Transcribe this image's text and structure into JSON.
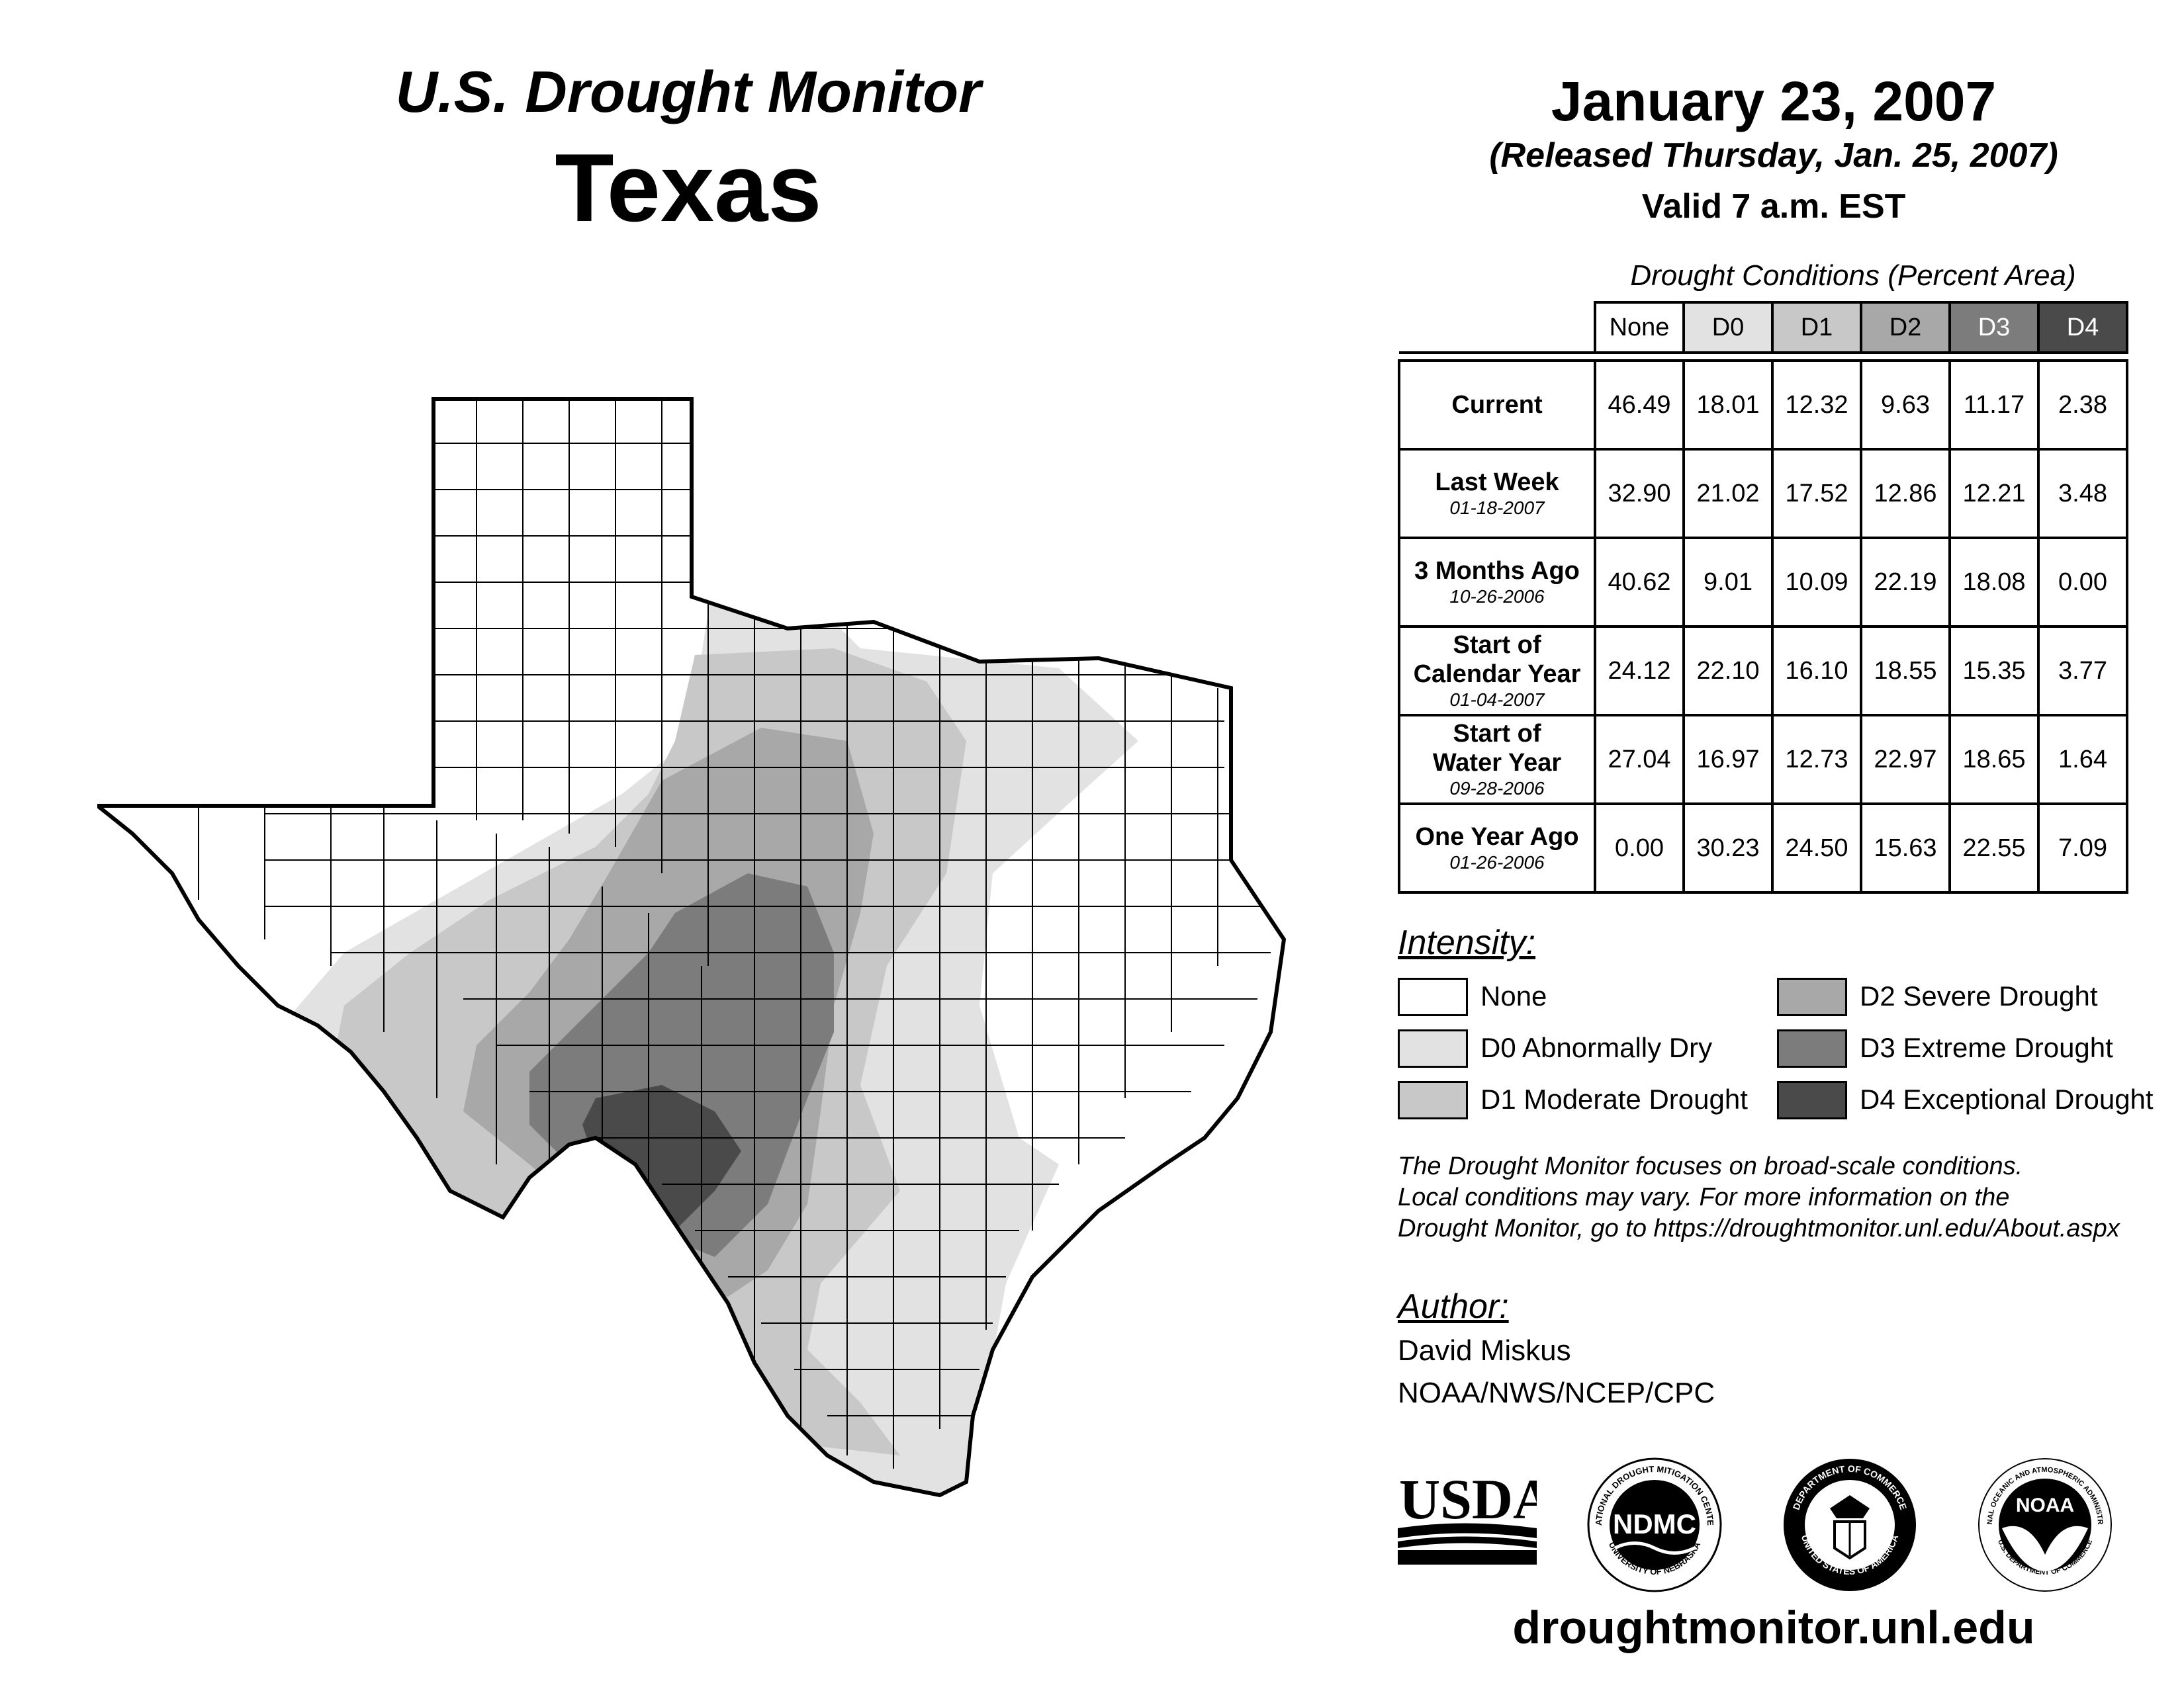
{
  "header": {
    "title": "U.S. Drought Monitor",
    "state": "Texas",
    "date": "January 23, 2007",
    "released": "(Released Thursday, Jan. 25, 2007)",
    "valid": "Valid 7 a.m. EST"
  },
  "table": {
    "caption": "Drought Conditions (Percent Area)",
    "columns": [
      "None",
      "D0",
      "D1",
      "D2",
      "D3",
      "D4"
    ],
    "rows": [
      {
        "label": "Current",
        "date": "",
        "values": [
          "46.49",
          "18.01",
          "12.32",
          "9.63",
          "11.17",
          "2.38"
        ]
      },
      {
        "label": "Last Week",
        "date": "01-18-2007",
        "values": [
          "32.90",
          "21.02",
          "17.52",
          "12.86",
          "12.21",
          "3.48"
        ]
      },
      {
        "label": "3 Months Ago",
        "date": "10-26-2006",
        "values": [
          "40.62",
          "9.01",
          "10.09",
          "22.19",
          "18.08",
          "0.00"
        ]
      },
      {
        "label_line1": "Start of",
        "label_line2": "Calendar Year",
        "date": "01-04-2007",
        "values": [
          "24.12",
          "22.10",
          "16.10",
          "18.55",
          "15.35",
          "3.77"
        ]
      },
      {
        "label_line1": "Start of",
        "label_line2": "Water Year",
        "date": "09-28-2006",
        "values": [
          "27.04",
          "16.97",
          "12.73",
          "22.97",
          "18.65",
          "1.64"
        ]
      },
      {
        "label": "One Year Ago",
        "date": "01-26-2006",
        "values": [
          "0.00",
          "30.23",
          "24.50",
          "15.63",
          "22.55",
          "7.09"
        ]
      }
    ]
  },
  "colors": {
    "none": "#ffffff",
    "d0": "#e2e2e2",
    "d1": "#c8c8c8",
    "d2": "#a8a8a8",
    "d3": "#7c7c7c",
    "d4": "#4a4a4a"
  },
  "legend": {
    "title": "Intensity:",
    "items": {
      "none": "None",
      "d0": "D0 Abnormally Dry",
      "d1": "D1 Moderate Drought",
      "d2": "D2 Severe Drought",
      "d3": "D3 Extreme Drought",
      "d4": "D4 Exceptional Drought"
    }
  },
  "note": {
    "line1": "The Drought Monitor focuses on broad-scale conditions.",
    "line2": "Local conditions may vary. For more information on the",
    "line3": "Drought Monitor, go to https://droughtmonitor.unl.edu/About.aspx"
  },
  "author": {
    "title": "Author:",
    "name": "David Miskus",
    "org": "NOAA/NWS/NCEP/CPC"
  },
  "logos": {
    "usda": "USDA",
    "ndmc": "NDMC",
    "ndmc_ring_top": "NATIONAL DROUGHT MITIGATION CENTER",
    "ndmc_ring_bottom": "UNIVERSITY OF NEBRASKA",
    "doc_ring_top": "DEPARTMENT OF COMMERCE",
    "doc_ring_bottom": "UNITED STATES OF AMERICA",
    "noaa": "NOAA",
    "noaa_ring_top": "NATIONAL OCEANIC AND ATMOSPHERIC ADMINISTRATION",
    "noaa_ring_bottom": "U.S. DEPARTMENT OF COMMERCE"
  },
  "footer_url": "droughtmonitor.unl.edu"
}
